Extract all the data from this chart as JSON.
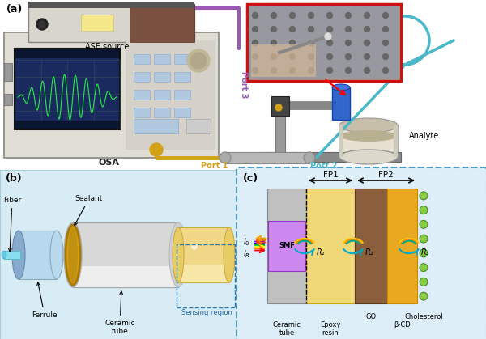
{
  "fig_width": 6.0,
  "fig_height": 4.19,
  "dpi": 100,
  "bg_color": "#ffffff",
  "panel_a_label": "(a)",
  "panel_b_label": "(b)",
  "panel_c_label": "(c)",
  "label_fontsize": 9,
  "osa_label": "OSA",
  "ase_label": "ASE source",
  "analyte_label": "Analyte",
  "port1_label": "Port 1",
  "port2_label": "Port 2",
  "port3_label": "Port 3",
  "fiber_label": "Fiber",
  "ferrule_label": "Ferrule",
  "sealant_label": "Sealant",
  "ceramic_tube_label": "Ceramic\ntube",
  "sensing_region_label": "Sensing region",
  "fp1_label": "FP1",
  "fp2_label": "FP2",
  "smf_label": "SMF",
  "r1_label": "R₁",
  "r2_label": "R₂",
  "r3_label": "R₃",
  "i0_label": "$I_0$",
  "ir_label": "$I_R$",
  "ceramic_tube_c_label": "Ceramic\ntube",
  "epoxy_label": "Epoxy\nresin",
  "go_label": "GO",
  "bcd_label": "β-CD",
  "cholesterol_label": "Cholesterol",
  "port1_color": "#d4a017",
  "port2_color": "#4ab8c8",
  "port3_color": "#9b59b6",
  "panel_b_bg": "#d8ecf5",
  "panel_c_bg": "#deeef8",
  "panel_c_border": "#5599bb"
}
